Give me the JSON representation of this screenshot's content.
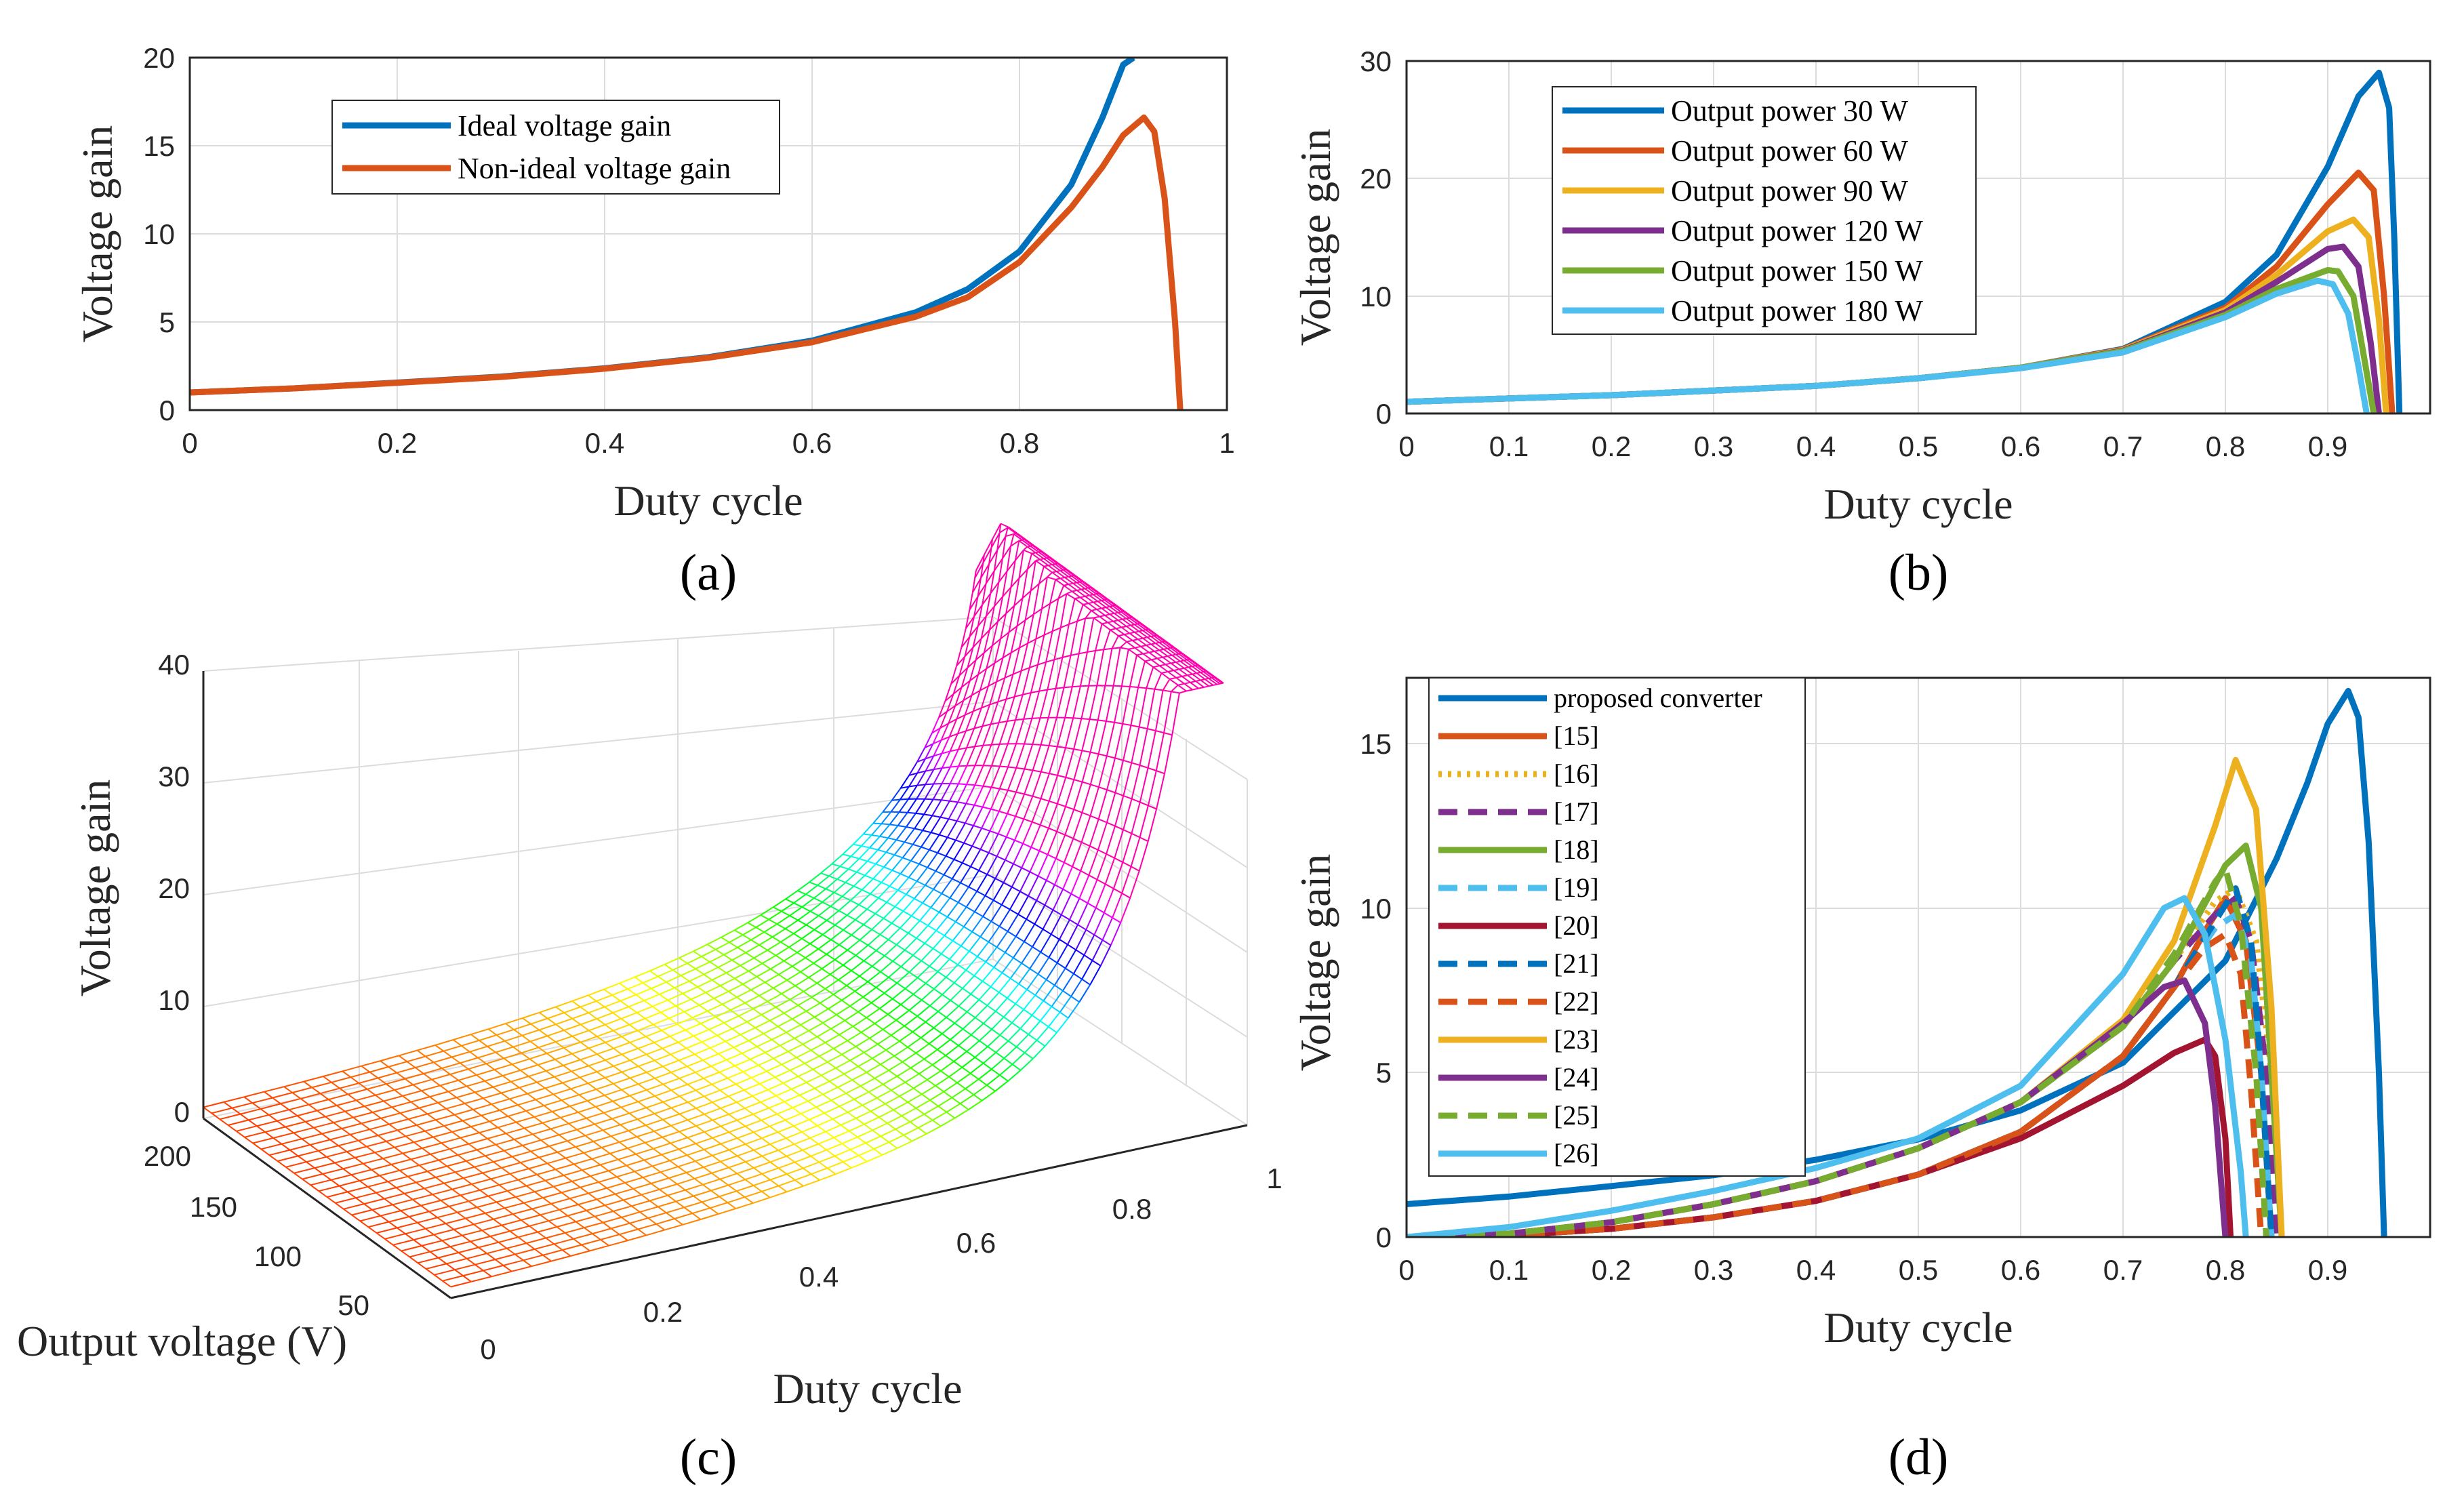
{
  "chart_data": [
    {
      "id": "a",
      "type": "line",
      "panel_label": "(a)",
      "xlabel": "Duty cycle",
      "ylabel": "Voltage gain",
      "xlim": [
        0,
        1
      ],
      "ylim": [
        0,
        20
      ],
      "xticks": [
        "0",
        "0.2",
        "0.4",
        "0.6",
        "0.8",
        "1"
      ],
      "yticks": [
        "0",
        "5",
        "10",
        "15",
        "20"
      ],
      "grid": true,
      "legend_position": "top-left",
      "series": [
        {
          "name": "Ideal voltage gain",
          "color": "#0072BD",
          "dash": "solid",
          "x": [
            0,
            0.1,
            0.2,
            0.3,
            0.4,
            0.5,
            0.6,
            0.7,
            0.75,
            0.8,
            0.85,
            0.88,
            0.9,
            0.91
          ],
          "y": [
            1,
            1.23,
            1.56,
            1.9,
            2.37,
            3,
            3.94,
            5.55,
            6.86,
            9,
            12.8,
            16.6,
            19.6,
            20
          ]
        },
        {
          "name": "Non-ideal voltage gain",
          "color": "#D95319",
          "dash": "solid",
          "x": [
            0,
            0.1,
            0.2,
            0.3,
            0.4,
            0.5,
            0.6,
            0.7,
            0.75,
            0.8,
            0.85,
            0.88,
            0.9,
            0.92,
            0.93,
            0.94,
            0.95,
            0.955
          ],
          "y": [
            1,
            1.23,
            1.55,
            1.88,
            2.35,
            2.97,
            3.85,
            5.3,
            6.4,
            8.4,
            11.5,
            13.8,
            15.6,
            16.6,
            15.8,
            12,
            5,
            0
          ]
        }
      ]
    },
    {
      "id": "b",
      "type": "line",
      "panel_label": "(b)",
      "xlabel": "Duty cycle",
      "ylabel": "Voltage gain",
      "xlim": [
        0,
        1
      ],
      "ylim": [
        0,
        30
      ],
      "xticks": [
        "0",
        "0.1",
        "0.2",
        "0.3",
        "0.4",
        "0.5",
        "0.6",
        "0.7",
        "0.8",
        "0.9"
      ],
      "yticks": [
        "0",
        "10",
        "20",
        "30"
      ],
      "grid": true,
      "legend_position": "top-left",
      "series": [
        {
          "name": "Output power 30 W",
          "color": "#0072BD",
          "dash": "solid",
          "x": [
            0,
            0.2,
            0.4,
            0.5,
            0.6,
            0.7,
            0.8,
            0.85,
            0.9,
            0.93,
            0.95,
            0.96,
            0.965,
            0.97
          ],
          "y": [
            1,
            1.56,
            2.35,
            3,
            3.9,
            5.5,
            9.5,
            13.5,
            21,
            27,
            29,
            26,
            15,
            0
          ]
        },
        {
          "name": "Output power 60 W",
          "color": "#D95319",
          "dash": "solid",
          "x": [
            0,
            0.2,
            0.4,
            0.5,
            0.6,
            0.7,
            0.8,
            0.85,
            0.9,
            0.93,
            0.945,
            0.955,
            0.963
          ],
          "y": [
            1,
            1.56,
            2.35,
            3,
            3.9,
            5.45,
            9,
            12.5,
            17.8,
            20.5,
            19,
            10,
            0
          ]
        },
        {
          "name": "Output power 90 W",
          "color": "#EDB120",
          "dash": "solid",
          "x": [
            0,
            0.2,
            0.4,
            0.5,
            0.6,
            0.7,
            0.8,
            0.85,
            0.9,
            0.925,
            0.94,
            0.95,
            0.957
          ],
          "y": [
            1,
            1.56,
            2.35,
            3,
            3.9,
            5.4,
            8.8,
            11.8,
            15.5,
            16.5,
            15,
            8,
            0
          ]
        },
        {
          "name": "Output power 120 W",
          "color": "#7E2F8E",
          "dash": "solid",
          "x": [
            0,
            0.2,
            0.4,
            0.5,
            0.6,
            0.7,
            0.8,
            0.85,
            0.9,
            0.915,
            0.93,
            0.942,
            0.95
          ],
          "y": [
            1,
            1.56,
            2.35,
            3,
            3.9,
            5.35,
            8.6,
            11.2,
            14,
            14.2,
            12.5,
            6,
            0
          ]
        },
        {
          "name": "Output power 150 W",
          "color": "#77AC30",
          "dash": "solid",
          "x": [
            0,
            0.2,
            0.4,
            0.5,
            0.6,
            0.7,
            0.8,
            0.85,
            0.9,
            0.91,
            0.925,
            0.935,
            0.945
          ],
          "y": [
            1,
            1.56,
            2.35,
            3,
            3.9,
            5.3,
            8.4,
            10.6,
            12.2,
            12.1,
            10,
            5,
            0
          ]
        },
        {
          "name": "Output power 180 W",
          "color": "#4DBEEE",
          "dash": "solid",
          "x": [
            0,
            0.2,
            0.4,
            0.5,
            0.6,
            0.7,
            0.8,
            0.85,
            0.89,
            0.905,
            0.92,
            0.93,
            0.938
          ],
          "y": [
            1,
            1.56,
            2.35,
            3,
            3.85,
            5.2,
            8.2,
            10.2,
            11.3,
            11,
            8.5,
            4,
            0
          ]
        }
      ]
    },
    {
      "id": "c",
      "type": "surface",
      "panel_label": "(c)",
      "xlabel": "Duty cycle",
      "ylabel": "Output voltage (V)",
      "zlabel": "Voltage gain",
      "xlim": [
        0,
        1
      ],
      "ylim": [
        0,
        200
      ],
      "zlim": [
        0,
        40
      ],
      "xticks": [
        "0",
        "0.2",
        "0.4",
        "0.6",
        "0.8",
        "1"
      ],
      "yticks": [
        "50",
        "100",
        "150",
        "200"
      ],
      "zticks": [
        "0",
        "10",
        "20",
        "30",
        "40"
      ],
      "grid": true,
      "colormap": "hsv"
    },
    {
      "id": "d",
      "type": "line",
      "panel_label": "(d)",
      "xlabel": "Duty cycle",
      "ylabel": "Voltage gain",
      "xlim": [
        0,
        1
      ],
      "ylim": [
        0,
        17
      ],
      "xticks": [
        "0",
        "0.1",
        "0.2",
        "0.3",
        "0.4",
        "0.5",
        "0.6",
        "0.7",
        "0.8",
        "0.9"
      ],
      "yticks": [
        "0",
        "5",
        "10",
        "15"
      ],
      "grid": true,
      "legend_position": "top-left",
      "series": [
        {
          "name": "proposed converter",
          "color": "#0072BD",
          "dash": "solid",
          "x": [
            0,
            0.1,
            0.2,
            0.3,
            0.4,
            0.5,
            0.6,
            0.7,
            0.8,
            0.85,
            0.88,
            0.9,
            0.92,
            0.93,
            0.94,
            0.95,
            0.955
          ],
          "y": [
            1,
            1.23,
            1.55,
            1.88,
            2.35,
            2.97,
            3.85,
            5.3,
            8.4,
            11.5,
            13.8,
            15.6,
            16.6,
            15.8,
            12,
            5,
            0
          ]
        },
        {
          "name": "[15]",
          "color": "#D95319",
          "dash": "solid",
          "x": [
            0,
            0.1,
            0.2,
            0.3,
            0.4,
            0.5,
            0.6,
            0.7,
            0.75,
            0.78,
            0.8,
            0.82,
            0.835,
            0.845
          ],
          "y": [
            0,
            0.05,
            0.25,
            0.6,
            1.1,
            1.9,
            3.2,
            5.5,
            7.6,
            9.3,
            10.3,
            9,
            5,
            0
          ]
        },
        {
          "name": "[16]",
          "color": "#EDB120",
          "dash": "dot",
          "x": [
            0,
            0.1,
            0.2,
            0.3,
            0.4,
            0.5,
            0.6,
            0.7,
            0.75,
            0.79,
            0.81,
            0.83,
            0.845,
            0.855
          ],
          "y": [
            0,
            0.1,
            0.45,
            1.0,
            1.7,
            2.7,
            4.1,
            6.4,
            8.4,
            10.2,
            10.6,
            9,
            5,
            0
          ]
        },
        {
          "name": "[17]",
          "color": "#7E2F8E",
          "dash": "dash",
          "x": [
            0,
            0.1,
            0.2,
            0.3,
            0.4,
            0.5,
            0.6,
            0.7,
            0.75,
            0.79,
            0.81,
            0.825,
            0.84,
            0.85
          ],
          "y": [
            0,
            0.1,
            0.45,
            1.0,
            1.7,
            2.7,
            4.1,
            6.4,
            8.4,
            9.8,
            10.3,
            9,
            5,
            0
          ]
        },
        {
          "name": "[18]",
          "color": "#77AC30",
          "dash": "solid",
          "x": [
            0,
            0.1,
            0.2,
            0.3,
            0.4,
            0.5,
            0.6,
            0.7,
            0.75,
            0.8,
            0.82,
            0.835,
            0.845,
            0.855
          ],
          "y": [
            0,
            0.1,
            0.45,
            1.0,
            1.7,
            2.7,
            4.1,
            6.4,
            8.4,
            11.3,
            11.9,
            10,
            5,
            0
          ]
        },
        {
          "name": "[19]",
          "color": "#4DBEEE",
          "dash": "dash",
          "x": [
            0,
            0.1,
            0.2,
            0.3,
            0.4,
            0.5,
            0.6,
            0.7,
            0.75,
            0.79,
            0.81,
            0.825,
            0.835,
            0.845
          ],
          "y": [
            0,
            0.05,
            0.25,
            0.6,
            1.1,
            1.9,
            3.2,
            5.5,
            7.6,
            9.4,
            9.8,
            8.5,
            5,
            0
          ]
        },
        {
          "name": "[20]",
          "color": "#A2142F",
          "dash": "solid",
          "x": [
            0,
            0.1,
            0.2,
            0.3,
            0.4,
            0.5,
            0.6,
            0.7,
            0.75,
            0.78,
            0.79,
            0.8,
            0.805
          ],
          "y": [
            0,
            0.05,
            0.25,
            0.6,
            1.1,
            1.9,
            3.0,
            4.6,
            5.6,
            6.0,
            5.5,
            3,
            0
          ]
        },
        {
          "name": "[21]",
          "color": "#0072BD",
          "dash": "dash",
          "x": [
            0,
            0.1,
            0.2,
            0.3,
            0.4,
            0.5,
            0.6,
            0.7,
            0.75,
            0.79,
            0.81,
            0.825,
            0.835,
            0.845
          ],
          "y": [
            0,
            0.05,
            0.25,
            0.6,
            1.1,
            1.9,
            3.2,
            5.5,
            7.6,
            9.6,
            10.6,
            9,
            5,
            0
          ]
        },
        {
          "name": "[22]",
          "color": "#D95319",
          "dash": "dash",
          "x": [
            0,
            0.1,
            0.2,
            0.3,
            0.4,
            0.5,
            0.6,
            0.7,
            0.75,
            0.78,
            0.8,
            0.815,
            0.825,
            0.835
          ],
          "y": [
            0,
            0.05,
            0.25,
            0.6,
            1.1,
            1.9,
            3.2,
            5.5,
            7.6,
            8.8,
            9.2,
            8,
            4.5,
            0
          ]
        },
        {
          "name": "[23]",
          "color": "#EDB120",
          "dash": "solid",
          "x": [
            0,
            0.1,
            0.2,
            0.3,
            0.4,
            0.5,
            0.6,
            0.7,
            0.75,
            0.79,
            0.81,
            0.83,
            0.845,
            0.855
          ],
          "y": [
            0,
            0.1,
            0.45,
            1.0,
            1.7,
            2.7,
            4.1,
            6.6,
            9.0,
            12.5,
            14.5,
            13,
            7,
            0
          ]
        },
        {
          "name": "[24]",
          "color": "#7E2F8E",
          "dash": "solid",
          "x": [
            0,
            0.1,
            0.2,
            0.3,
            0.4,
            0.5,
            0.6,
            0.7,
            0.74,
            0.76,
            0.78,
            0.79,
            0.8
          ],
          "y": [
            0,
            0.1,
            0.45,
            1.0,
            1.7,
            2.7,
            4.1,
            6.5,
            7.6,
            7.8,
            6.5,
            4,
            0
          ]
        },
        {
          "name": "[25]",
          "color": "#77AC30",
          "dash": "dash",
          "x": [
            0,
            0.1,
            0.2,
            0.3,
            0.4,
            0.5,
            0.6,
            0.7,
            0.75,
            0.79,
            0.8,
            0.815,
            0.83,
            0.84
          ],
          "y": [
            0,
            0.1,
            0.45,
            1.0,
            1.7,
            2.7,
            4.1,
            6.4,
            8.6,
            10.8,
            11.2,
            9.5,
            5,
            0
          ]
        },
        {
          "name": "[26]",
          "color": "#4DBEEE",
          "dash": "solid",
          "x": [
            0,
            0.1,
            0.2,
            0.3,
            0.4,
            0.5,
            0.6,
            0.7,
            0.74,
            0.76,
            0.78,
            0.8,
            0.815,
            0.82
          ],
          "y": [
            0,
            0.3,
            0.8,
            1.4,
            2.1,
            3.0,
            4.6,
            8.0,
            10.0,
            10.3,
            9.2,
            6,
            2,
            0
          ]
        }
      ]
    }
  ]
}
